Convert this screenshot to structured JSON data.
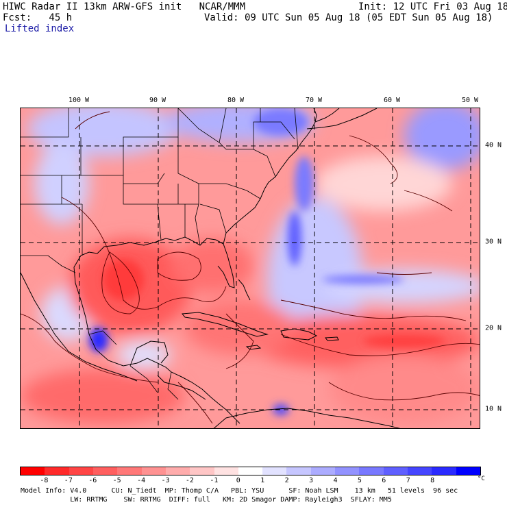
{
  "header": {
    "title_left": "HIWC Radar II 13km ARW-GFS init   NCAR/MMM",
    "init": "Init: 12 UTC Fri 03 Aug 18",
    "fcst": "Fcst:   45 h",
    "valid": "Valid: 09 UTC Sun 05 Aug 18 (05 EDT Sun 05 Aug 18)",
    "field": "Lifted index"
  },
  "map": {
    "lon_labels": [
      "100 W",
      "90 W",
      "80 W",
      "70 W",
      "60 W",
      "50 W"
    ],
    "lat_labels": [
      "40 N",
      "30 N",
      "20 N",
      "10 N"
    ],
    "colors": {
      "coast": "#000000",
      "grid": "#000000",
      "contour": "#5a0000"
    }
  },
  "colorbar": {
    "labels": [
      "-8",
      "-7",
      "-6",
      "-5",
      "-4",
      "-3",
      "-2",
      "-1",
      "0",
      "1",
      "2",
      "3",
      "4",
      "5",
      "6",
      "7",
      "8"
    ],
    "unit": "°C",
    "colors": [
      "#ff0000",
      "#ff2a2a",
      "#ff4545",
      "#ff5f5f",
      "#ff7878",
      "#ff9292",
      "#ffacac",
      "#ffc6c6",
      "#ffe2e2",
      "#ffffff",
      "#e2e2ff",
      "#c6c6ff",
      "#acacff",
      "#9292ff",
      "#7878ff",
      "#5f5fff",
      "#4545ff",
      "#2a2aff",
      "#0000ff"
    ]
  },
  "footer": {
    "line1": "Model Info: V4.0      CU: N_Tiedt  MP: Thomp C/A   PBL: YSU      SF: Noah LSM    13 km   51 levels  96 sec",
    "line2": "            LW: RRTMG    SW: RRTMG  DIFF: full   KM: 2D Smagor DAMP: Rayleigh3  SFLAY: MM5"
  }
}
